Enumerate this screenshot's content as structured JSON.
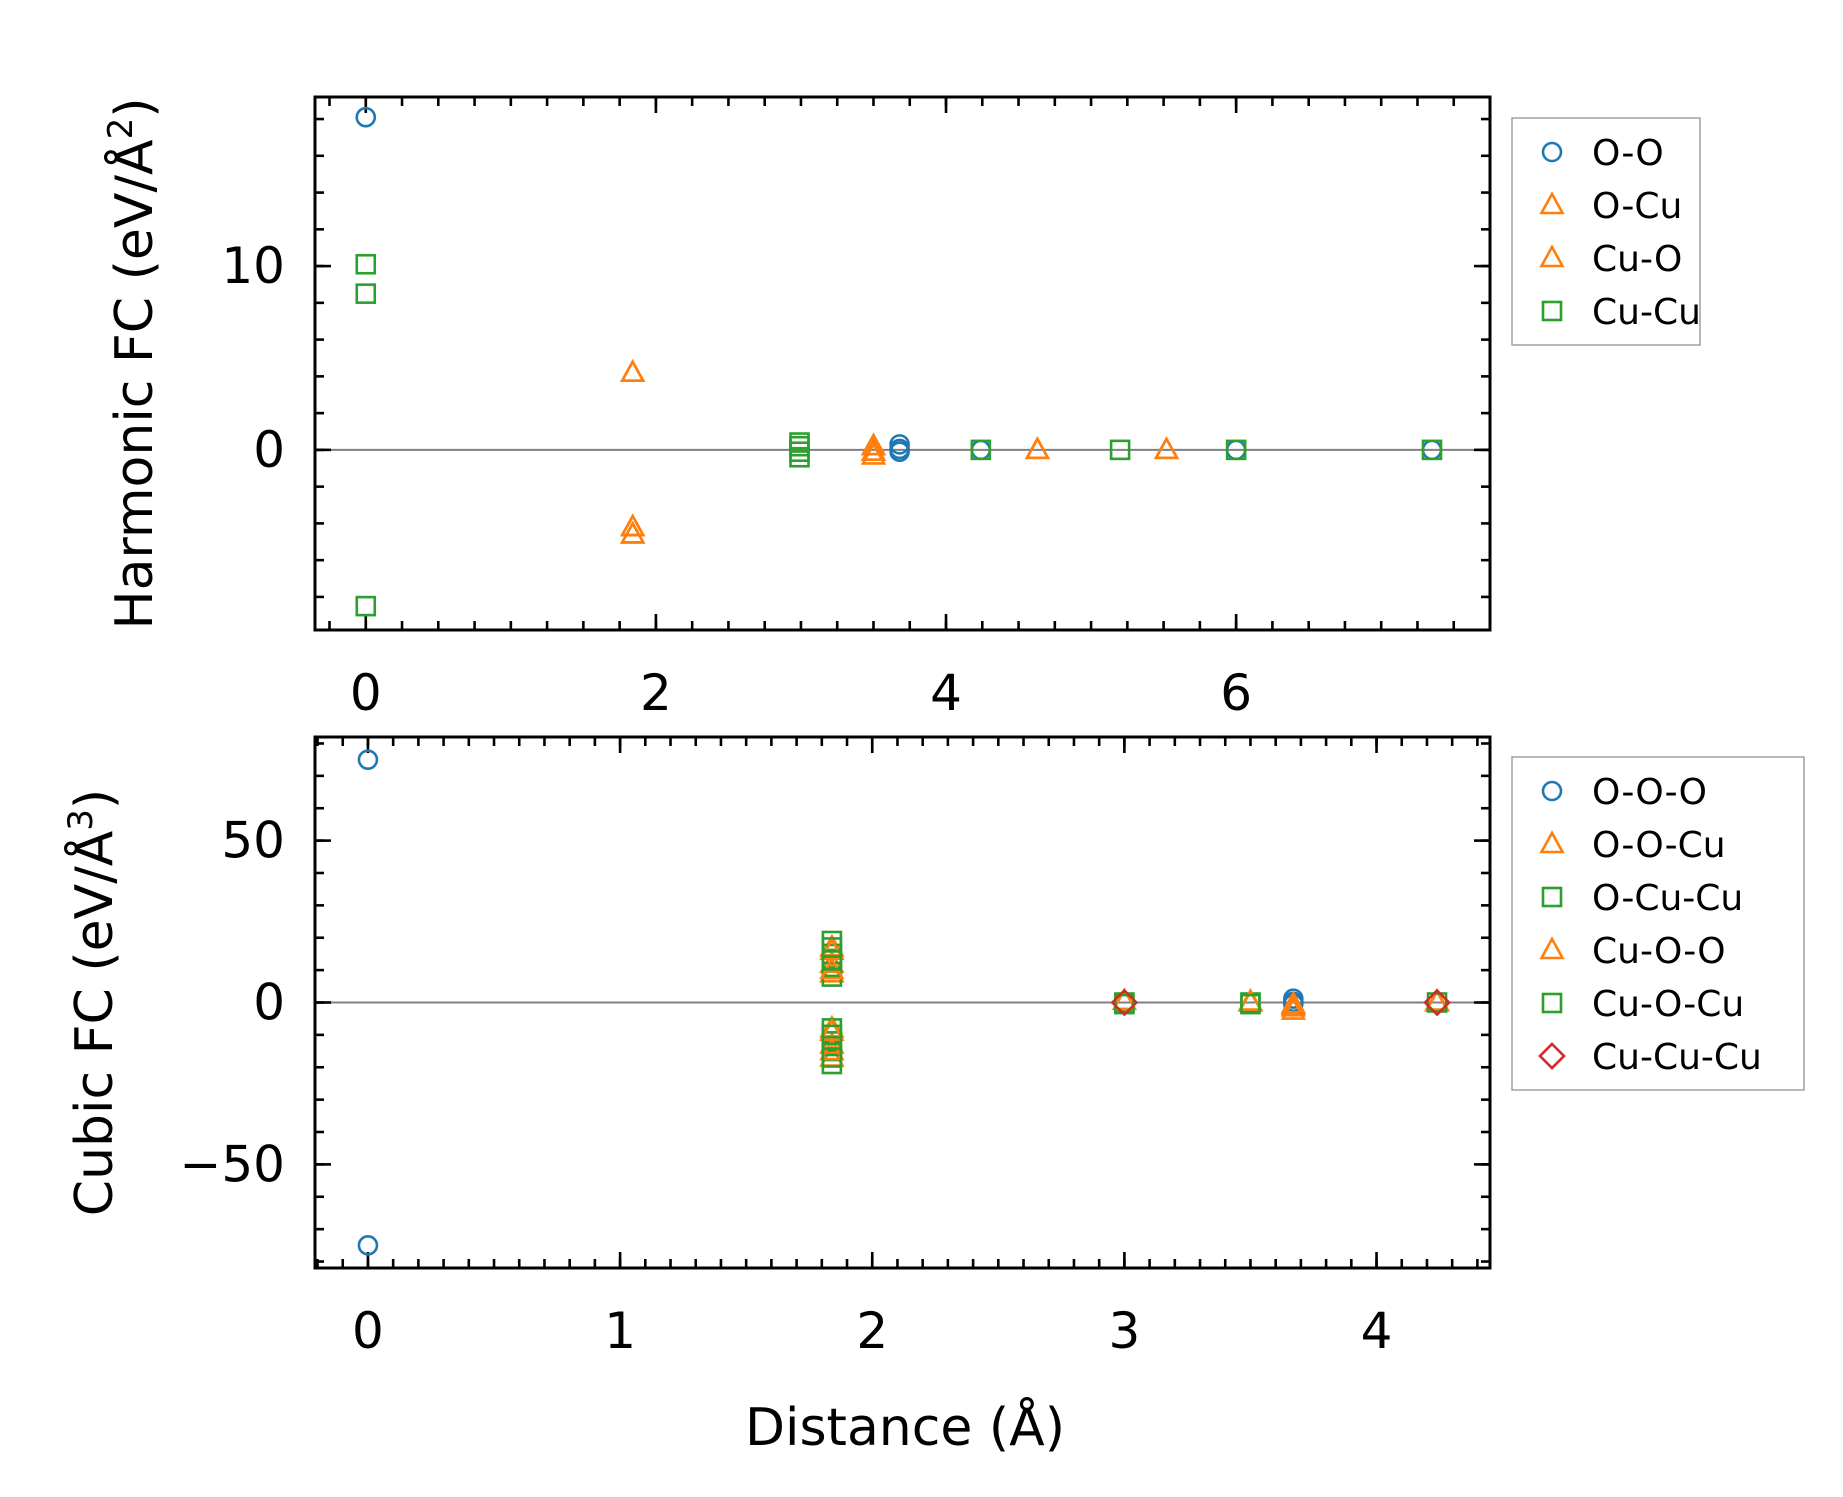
{
  "chart_data": [
    {
      "type": "scatter",
      "xlabel": "",
      "ylabel": "Harmonic FC (eV/Å²)",
      "ylabel_main": "Harmonic FC (eV/Å",
      "ylabel_sup": "2",
      "ylabel_close": ")",
      "xlim": [
        -0.35,
        7.75
      ],
      "ylim": [
        -9.8,
        19.2
      ],
      "xticks": [
        0,
        2,
        4,
        6
      ],
      "xtick_labels": [
        "0",
        "2",
        "4",
        "6"
      ],
      "yticks": [
        0,
        10
      ],
      "ytick_labels": [
        "0",
        "10"
      ],
      "grid": false,
      "zero_line": true,
      "legend_position": "outside-right",
      "series": [
        {
          "name": "O-O",
          "marker": "circle",
          "color": "#1f77b4",
          "points": [
            [
              0,
              18.1
            ],
            [
              3.68,
              0.3
            ],
            [
              3.68,
              0.05
            ],
            [
              3.68,
              -0.1
            ],
            [
              4.24,
              0
            ],
            [
              6.0,
              0
            ],
            [
              7.35,
              0
            ]
          ]
        },
        {
          "name": "O-Cu",
          "marker": "triangle",
          "color": "#ff7f0e",
          "points": [
            [
              1.84,
              4.2
            ],
            [
              1.84,
              -4.2
            ],
            [
              1.84,
              -4.6
            ],
            [
              3.5,
              0.2
            ],
            [
              3.5,
              -0.1
            ],
            [
              3.5,
              -0.3
            ],
            [
              4.63,
              0
            ],
            [
              5.52,
              0
            ]
          ]
        },
        {
          "name": "Cu-O",
          "marker": "triangle",
          "color": "#ff7f0e",
          "points": [
            [
              1.84,
              4.2
            ],
            [
              1.84,
              -4.2
            ],
            [
              1.84,
              -4.6
            ],
            [
              3.5,
              0.2
            ],
            [
              3.5,
              -0.1
            ],
            [
              4.63,
              0
            ],
            [
              5.52,
              0
            ]
          ]
        },
        {
          "name": "Cu-Cu",
          "marker": "square",
          "color": "#2ca02c",
          "points": [
            [
              0,
              10.1
            ],
            [
              0,
              8.5
            ],
            [
              0,
              -8.5
            ],
            [
              2.99,
              0.4
            ],
            [
              2.99,
              0.2
            ],
            [
              2.99,
              -0.1
            ],
            [
              2.99,
              -0.4
            ],
            [
              4.24,
              0
            ],
            [
              5.2,
              0
            ],
            [
              6.0,
              0
            ],
            [
              7.35,
              0
            ]
          ]
        }
      ]
    },
    {
      "type": "scatter",
      "xlabel": "Distance (Å)",
      "ylabel": "Cubic FC (eV/Å³)",
      "ylabel_main": "Cubic FC (eV/Å",
      "ylabel_sup": "3",
      "ylabel_close": ")",
      "xlim": [
        -0.21,
        4.45
      ],
      "ylim": [
        -82,
        82
      ],
      "xticks": [
        0,
        1,
        2,
        3,
        4
      ],
      "xtick_labels": [
        "0",
        "1",
        "2",
        "3",
        "4"
      ],
      "yticks": [
        -50,
        0,
        50
      ],
      "ytick_labels": [
        "−50",
        "0",
        "50"
      ],
      "grid": false,
      "zero_line": true,
      "legend_position": "outside-right",
      "series": [
        {
          "name": "O-O-O",
          "marker": "circle",
          "color": "#1f77b4",
          "points": [
            [
              0,
              75
            ],
            [
              0,
              -75
            ],
            [
              3.67,
              1.2
            ],
            [
              3.67,
              0.2
            ],
            [
              3.67,
              -0.5
            ]
          ]
        },
        {
          "name": "O-O-Cu",
          "marker": "triangle",
          "color": "#ff7f0e",
          "points": [
            [
              1.84,
              17
            ],
            [
              1.84,
              12
            ],
            [
              1.84,
              9
            ],
            [
              1.84,
              -8
            ],
            [
              1.84,
              -13
            ],
            [
              1.84,
              -17
            ],
            [
              3.5,
              0
            ],
            [
              3.67,
              -0.5
            ],
            [
              3.67,
              -1.5
            ],
            [
              3.67,
              -2.5
            ],
            [
              4.24,
              0
            ]
          ]
        },
        {
          "name": "O-Cu-Cu",
          "marker": "square",
          "color": "#2ca02c",
          "points": [
            [
              1.84,
              19
            ],
            [
              1.84,
              15
            ],
            [
              1.84,
              11
            ],
            [
              1.84,
              8
            ],
            [
              1.84,
              -8
            ],
            [
              1.84,
              -12
            ],
            [
              1.84,
              -15
            ],
            [
              1.84,
              -19
            ],
            [
              3.0,
              0
            ],
            [
              3.5,
              0
            ]
          ]
        },
        {
          "name": "Cu-O-O",
          "marker": "triangle",
          "color": "#ff7f0e",
          "points": [
            [
              1.84,
              16
            ],
            [
              1.84,
              10
            ],
            [
              1.84,
              -9
            ],
            [
              1.84,
              -15
            ],
            [
              3.0,
              0.5
            ],
            [
              3.5,
              0.3
            ],
            [
              3.67,
              -1
            ],
            [
              4.24,
              0.3
            ]
          ]
        },
        {
          "name": "Cu-O-Cu",
          "marker": "square",
          "color": "#2ca02c",
          "points": [
            [
              1.84,
              17
            ],
            [
              1.84,
              13
            ],
            [
              1.84,
              -10
            ],
            [
              1.84,
              -17
            ],
            [
              3.0,
              -0.5
            ],
            [
              3.5,
              -0.5
            ],
            [
              4.24,
              0
            ]
          ]
        },
        {
          "name": "Cu-Cu-Cu",
          "marker": "diamond",
          "color": "#d62728",
          "points": [
            [
              3.0,
              0
            ],
            [
              4.24,
              0
            ]
          ]
        }
      ]
    }
  ]
}
